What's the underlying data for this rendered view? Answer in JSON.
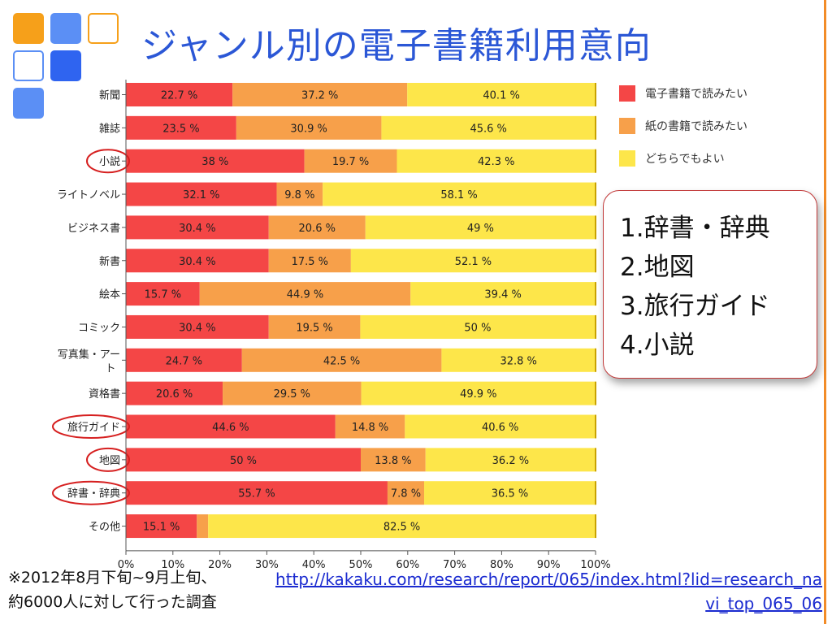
{
  "title": "ジャンル別の電子書籍利用意向",
  "colors": {
    "digital": "#f44646",
    "paper": "#f7a04a",
    "either": "#fde64a",
    "title": "#2b57d6",
    "circle": "#d62020",
    "accent_orange": "#f6a01a",
    "accent_blue": "#5b8ff5",
    "accent_dark_blue": "#2f64f0"
  },
  "chart_data": {
    "type": "bar",
    "orientation": "horizontal",
    "stacked": true,
    "categories": [
      "新聞",
      "雑誌",
      "小説",
      "ライトノベル",
      "ビジネス書",
      "新書",
      "絵本",
      "コミック",
      "写真集・アート",
      "資格書",
      "旅行ガイド",
      "地図",
      "辞書・辞典",
      "その他"
    ],
    "series": [
      {
        "name": "電子書籍で読みたい",
        "values": [
          22.7,
          23.5,
          38,
          32.1,
          30.4,
          30.4,
          15.7,
          30.4,
          24.7,
          20.6,
          44.6,
          50,
          55.7,
          15.1
        ]
      },
      {
        "name": "紙の書籍で読みたい",
        "values": [
          37.2,
          30.9,
          19.7,
          9.8,
          20.6,
          17.5,
          44.9,
          19.5,
          42.5,
          29.5,
          14.8,
          13.8,
          7.8,
          2.4
        ]
      },
      {
        "name": "どちらでもよい",
        "values": [
          40.1,
          45.6,
          42.3,
          58.1,
          49,
          52.1,
          39.4,
          50,
          32.8,
          49.9,
          40.6,
          36.2,
          36.5,
          82.5
        ]
      }
    ],
    "labels": [
      [
        "22.7 %",
        "37.2 %",
        "40.1 %"
      ],
      [
        "23.5 %",
        "30.9 %",
        "45.6 %"
      ],
      [
        "38 %",
        "19.7 %",
        "42.3 %"
      ],
      [
        "32.1 %",
        "9.8 %",
        "58.1 %"
      ],
      [
        "30.4 %",
        "20.6 %",
        "49 %"
      ],
      [
        "30.4 %",
        "17.5 %",
        "52.1 %"
      ],
      [
        "15.7 %",
        "44.9 %",
        "39.4 %"
      ],
      [
        "30.4 %",
        "19.5 %",
        "50 %"
      ],
      [
        "24.7 %",
        "42.5 %",
        "32.8 %"
      ],
      [
        "20.6 %",
        "29.5 %",
        "49.9 %"
      ],
      [
        "44.6 %",
        "14.8 %",
        "40.6 %"
      ],
      [
        "50 %",
        "13.8 %",
        "36.2 %"
      ],
      [
        "55.7 %",
        "7.8 %",
        "36.5 %"
      ],
      [
        "15.1 %",
        "",
        "82.5 %"
      ]
    ],
    "x_ticks": [
      "0%",
      "10%",
      "20%",
      "30%",
      "40%",
      "50%",
      "60%",
      "70%",
      "80%",
      "90%",
      "100%"
    ],
    "xlim": [
      0,
      100
    ],
    "legend_position": "right",
    "grid": false,
    "highlighted_categories": [
      "小説",
      "旅行ガイド",
      "地図",
      "辞書・辞典"
    ]
  },
  "ranking": [
    "1.辞書・辞典",
    "2.地図",
    "3.旅行ガイド",
    "4.小説"
  ],
  "note": {
    "line1": "※2012年8月下旬~9月上旬、",
    "line2": "約6000人に対して行った調査"
  },
  "source_url": "http://kakaku.com/research/report/065/index.html?lid=research_navi_top_065_06"
}
